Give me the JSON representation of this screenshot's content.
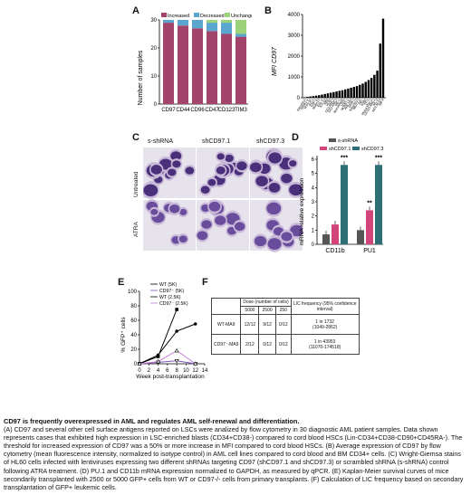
{
  "panels": {
    "A": "A",
    "B": "B",
    "C": "C",
    "D": "D",
    "E": "E",
    "F": "F"
  },
  "panelA": {
    "ylabel": "Number of samples",
    "yticks": [
      "0",
      "10",
      "20",
      "30"
    ],
    "legend": [
      "Increased",
      "Decreased",
      "Unchanged"
    ],
    "colors": {
      "increased": "#a3446b",
      "decreased": "#5aa6cf",
      "unchanged": "#9bd27a"
    }
  },
  "panelB": {
    "ylabel": "MFI CD97",
    "yticks": [
      "0",
      "1000",
      "2000",
      "3000",
      "4000"
    ],
    "categories": [
      "Kasumi-1",
      "SKNO-1",
      "MV4-11",
      "KG-1",
      "THP-1",
      "Molm13",
      "EoL-1",
      "KG-1a",
      "NB4",
      "HL60",
      "OCI-AML2",
      "OCI-AML3",
      "ME-1",
      "MonoMac6",
      "U937",
      "NOMO-1",
      "AML193",
      "SKM-1",
      "Kasumi-3",
      "MUTZ-3",
      "HEL",
      "K562",
      "TF-1",
      "Mono-Mac-1",
      "UCSD-AML1",
      "ML-2",
      "MOLM-14",
      "NB-4"
    ]
  },
  "panelC": {
    "columns": [
      "s-shRNA",
      "shCD97.1",
      "shCD97.3"
    ],
    "rows": [
      "Untreated",
      "ATRA"
    ]
  },
  "panelD": {
    "ylabel": "mRNA relative expression",
    "yticks": [
      "0",
      "1",
      "2",
      "3",
      "4",
      "5",
      "6"
    ],
    "groups": [
      "CD11b",
      "PU1"
    ],
    "legend": [
      "s-shRNA",
      "shCD97.1",
      "shCD97.3"
    ],
    "stars": [
      "***",
      "**",
      "***"
    ],
    "colors": {
      "s": "#555555",
      "sh1": "#d2447a",
      "sh3": "#2e6f76"
    }
  },
  "panelE": {
    "ylabel": "% GFP⁺ cells",
    "xlabel": "Week post-transplantation",
    "xticks": [
      "0",
      "2",
      "4",
      "6",
      "8",
      "10",
      "12",
      "14"
    ],
    "yticks": [
      "0",
      "20",
      "40",
      "60",
      "80",
      "100"
    ],
    "legend": [
      "WT (5K)",
      "CD97⁻ (5K)",
      "WT (2.5K)",
      "CD97⁻ (2.5K)"
    ]
  },
  "panelF": {
    "header_dose": "Dose (number of cells)",
    "header_lic": "LIC frequency (95% confidence interval)",
    "doses": [
      "5000",
      "2500",
      "250"
    ],
    "rows": [
      {
        "label": "WT-MA9",
        "c1": "12/12",
        "c2": "9/12",
        "c3": "0/12",
        "lic": "1 in 1732",
        "ci": "(1049-2862)"
      },
      {
        "label": "CD97⁻-MA9",
        "c1": "2/12",
        "c2": "0/12",
        "c3": "0/12",
        "lic": "1 in 43953",
        "ci": "(11070-174518)"
      }
    ]
  },
  "caption": {
    "title": "CD97 is frequently overexpressed in AML and regulates AML self-renewal and differentiation.",
    "body": "(A) CD97 and several other cell surface antigens reported on LSCs were analized by flow cytometry in 30 diagnostic AML patient samples. Data shown represents cases that exhibited high expression in LSC-enriched blasts (CD34+CD38-) compared to cord blood HSCs (Lin-CD34+CD38-CD90+CD45RA-). The threshold for increased expression of CD97 was a 50% or more increase in MFI compared to cord blood HSCs. (B) Average expression of CD97 by flow cytometry (mean fluorescence intensity, normalized to isotype control) in AML cell lines compared to cord blood and BM CD34+ cells. (C) Wright-Giemsa stains of HL60 cells infected with lentiviruses expressing two different shRNAs targeting CD97 (shCD97.1 and shCD97.3) or scrambled shRNA (s-shRNA) control following ATRA treatment. (D) PU.1 and CD11b mRNA expression normalized to GAPDH, as measured by qPCR. (E) Kaplan-Meier survival curves of mice secondarily transplanted with 2500 or 5000 GFP+ cells from WT or CD97-/- cells from primary transplants. (F) Calculation of LIC frequency based on secondary transplantation of GFP+ leukemic cells."
  },
  "chart_data": [
    {
      "type": "bar",
      "stacked": true,
      "categories": [
        "CD97",
        "CD44",
        "CD96",
        "CD47",
        "CD123",
        "TIM3"
      ],
      "series": [
        {
          "name": "Increased",
          "values": [
            29,
            28,
            27,
            26,
            25,
            24
          ]
        },
        {
          "name": "Decreased",
          "values": [
            1,
            2,
            3,
            3,
            4,
            1
          ]
        },
        {
          "name": "Unchanged",
          "values": [
            0,
            0,
            0,
            1,
            1,
            5
          ]
        }
      ],
      "ylabel": "Number of samples",
      "ylim": [
        0,
        30
      ]
    },
    {
      "type": "bar",
      "categories": [
        "Kasumi-1",
        "SKNO-1",
        "MV4-11",
        "KG-1",
        "THP-1",
        "Molm13",
        "EoL-1",
        "KG-1a",
        "NB4",
        "HL60",
        "OCI-AML2",
        "OCI-AML3",
        "ME-1",
        "MonoMac6",
        "U937",
        "NOMO-1",
        "AML193",
        "SKM-1",
        "Kasumi-3",
        "MUTZ-3",
        "HEL",
        "K562",
        "TF-1",
        "Mono-Mac-1",
        "UCSD-AML1",
        "ML-2",
        "MOLM-14",
        "NB-4"
      ],
      "values": [
        20,
        40,
        60,
        80,
        100,
        120,
        150,
        180,
        210,
        240,
        270,
        300,
        330,
        360,
        400,
        440,
        480,
        520,
        560,
        620,
        680,
        760,
        850,
        950,
        1100,
        1300,
        2600,
        3800
      ],
      "ylabel": "MFI CD97",
      "ylim": [
        0,
        4000
      ]
    },
    {
      "type": "bar",
      "categories": [
        "CD11b",
        "PU1"
      ],
      "series": [
        {
          "name": "s-shRNA",
          "values": [
            0.7,
            1.0
          ]
        },
        {
          "name": "shCD97.1",
          "values": [
            1.4,
            2.4
          ]
        },
        {
          "name": "shCD97.3",
          "values": [
            5.6,
            5.6
          ]
        }
      ],
      "ylabel": "mRNA relative expression",
      "ylim": [
        0,
        6
      ]
    },
    {
      "type": "line",
      "x": [
        0,
        4,
        8,
        12
      ],
      "series": [
        {
          "name": "WT (5K)",
          "values": [
            0,
            10,
            75,
            null
          ]
        },
        {
          "name": "CD97⁻ (5K)",
          "values": [
            0,
            2,
            4,
            0
          ]
        },
        {
          "name": "WT (2.5K)",
          "values": [
            0,
            12,
            45,
            55
          ]
        },
        {
          "name": "CD97⁻ (2.5K)",
          "values": [
            0,
            3,
            18,
            0
          ]
        }
      ],
      "xlabel": "Week post-transplantation",
      "ylabel": "% GFP⁺ cells",
      "xlim": [
        0,
        14
      ],
      "ylim": [
        0,
        100
      ]
    }
  ]
}
